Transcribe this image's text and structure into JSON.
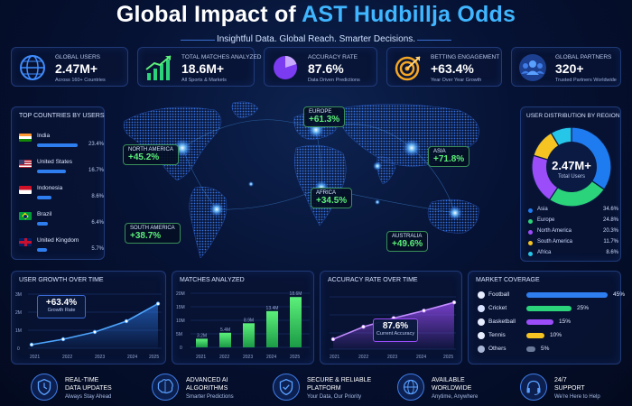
{
  "header": {
    "title_main": "Global Impact of ",
    "title_accent": "AST Hudbillja Odds",
    "subtitle": "Insightful Data. Global Reach. Smarter Decisions."
  },
  "kpis": [
    {
      "label": "GLOBAL USERS",
      "value": "2.47M+",
      "caption": "Across 160+ Countries",
      "icon": "globe-icon"
    },
    {
      "label": "TOTAL MATCHES ANALYZED",
      "value": "18.6M+",
      "caption": "All Sports & Markets",
      "icon": "growth-chart-icon"
    },
    {
      "label": "ACCURACY RATE",
      "value": "87.6%",
      "caption": "Data Driven Predictions",
      "icon": "pie-chart-icon"
    },
    {
      "label": "BETTING ENGAGEMENT",
      "value": "+63.4%",
      "caption": "Year Over Year Growth",
      "icon": "target-icon"
    },
    {
      "label": "GLOBAL PARTNERS",
      "value": "320+",
      "caption": "Trusted Partners Worldwide",
      "icon": "people-icon"
    }
  ],
  "top_countries": {
    "title": "TOP COUNTRIES BY USERS",
    "items": [
      {
        "name": "India",
        "pct": "23.4%",
        "share": 23.4
      },
      {
        "name": "United States",
        "pct": "16.7%",
        "share": 16.7
      },
      {
        "name": "Indonesia",
        "pct": "8.6%",
        "share": 8.6
      },
      {
        "name": "Brazil",
        "pct": "6.4%",
        "share": 6.4
      },
      {
        "name": "United Kingdom",
        "pct": "5.7%",
        "share": 5.7
      }
    ]
  },
  "map_regions": [
    {
      "name": "EUROPE",
      "pct": "+61.3%"
    },
    {
      "name": "NORTH AMERICA",
      "pct": "+45.2%"
    },
    {
      "name": "ASIA",
      "pct": "+71.8%"
    },
    {
      "name": "AFRICA",
      "pct": "+34.5%"
    },
    {
      "name": "SOUTH AMERICA",
      "pct": "+38.7%"
    },
    {
      "name": "AUSTRALIA",
      "pct": "+49.6%"
    }
  ],
  "distribution": {
    "title": "USER DISTRIBUTION BY REGION",
    "center_value": "2.47M+",
    "center_label": "Total Users",
    "items": [
      {
        "name": "Asia",
        "pct": "34.6%",
        "value": 34.6,
        "color": "#1f7cf0"
      },
      {
        "name": "Europe",
        "pct": "24.8%",
        "value": 24.8,
        "color": "#2bd37a"
      },
      {
        "name": "North America",
        "pct": "20.3%",
        "value": 20.3,
        "color": "#9b4dfa"
      },
      {
        "name": "South America",
        "pct": "11.7%",
        "value": 11.7,
        "color": "#f5c423"
      },
      {
        "name": "Africa",
        "pct": "8.6%",
        "value": 8.6,
        "color": "#25c6e8"
      }
    ]
  },
  "user_growth": {
    "title": "USER GROWTH OVER TIME",
    "callout_value": "+63.4%",
    "callout_label": "Growth Rate",
    "y_ticks": [
      "3M",
      "2M",
      "1M",
      "0"
    ],
    "x_ticks": [
      "2021",
      "2022",
      "2023",
      "2024",
      "2025"
    ]
  },
  "matches": {
    "title": "MATCHES ANALYZED",
    "y_ticks": [
      "20M",
      "15M",
      "10M",
      "5M",
      "0"
    ],
    "x_ticks": [
      "2021",
      "2022",
      "2023",
      "2024",
      "2025"
    ],
    "bar_labels": [
      "3.2M",
      "5.4M",
      "8.9M",
      "13.4M",
      "18.6M"
    ]
  },
  "accuracy": {
    "title": "ACCURACY RATE OVER TIME",
    "callout_value": "87.6%",
    "callout_label": "Current Accuracy",
    "x_ticks": [
      "2021",
      "2022",
      "2023",
      "2024",
      "2025"
    ]
  },
  "market": {
    "title": "MARKET COVERAGE",
    "items": [
      {
        "name": "Football",
        "pct": "45%",
        "value": 45,
        "color": "#2e7ef0"
      },
      {
        "name": "Cricket",
        "pct": "25%",
        "value": 25,
        "color": "#2bd37a"
      },
      {
        "name": "Basketball",
        "pct": "15%",
        "value": 15,
        "color": "#9b4dfa"
      },
      {
        "name": "Tennis",
        "pct": "10%",
        "value": 10,
        "color": "#f5c423"
      },
      {
        "name": "Others",
        "pct": "5%",
        "value": 5,
        "color": "#6b7a99"
      }
    ]
  },
  "features": [
    {
      "title": "REAL-TIME",
      "title2": "DATA UPDATES",
      "subtitle": "Always Stay Ahead",
      "icon": "clock-icon"
    },
    {
      "title": "ADVANCED AI",
      "title2": "ALGORITHMS",
      "subtitle": "Smarter Predictions",
      "icon": "brain-icon"
    },
    {
      "title": "SECURE & RELIABLE",
      "title2": "PLATFORM",
      "subtitle": "Your Data, Our Priority",
      "icon": "shield-icon"
    },
    {
      "title": "AVAILABLE",
      "title2": "WORLDWIDE",
      "subtitle": "Anytime, Anywhere",
      "icon": "globe-icon"
    },
    {
      "title": "24/7",
      "title2": "SUPPORT",
      "subtitle": "We're Here to Help",
      "icon": "headset-icon"
    }
  ],
  "chart_data": [
    {
      "type": "line",
      "title": "USER GROWTH OVER TIME",
      "x": [
        "2021",
        "2022",
        "2023",
        "2024",
        "2025"
      ],
      "series": [
        {
          "values": [
            0.2,
            0.5,
            0.9,
            1.5,
            2.47
          ]
        }
      ],
      "ylim": [
        0,
        3
      ],
      "y_unit": "M users"
    },
    {
      "type": "bar",
      "title": "MATCHES ANALYZED",
      "categories": [
        "2021",
        "2022",
        "2023",
        "2024",
        "2025"
      ],
      "values": [
        3.2,
        5.4,
        8.9,
        13.4,
        18.6
      ],
      "ylim": [
        0,
        20
      ],
      "y_unit": "M"
    },
    {
      "type": "area",
      "title": "ACCURACY RATE OVER TIME",
      "x": [
        "2021",
        "2022",
        "2023",
        "2024",
        "2025"
      ],
      "series": [
        {
          "values": [
            58,
            68,
            75,
            81,
            87.6
          ]
        }
      ],
      "ylim": [
        50,
        95
      ]
    }
  ]
}
